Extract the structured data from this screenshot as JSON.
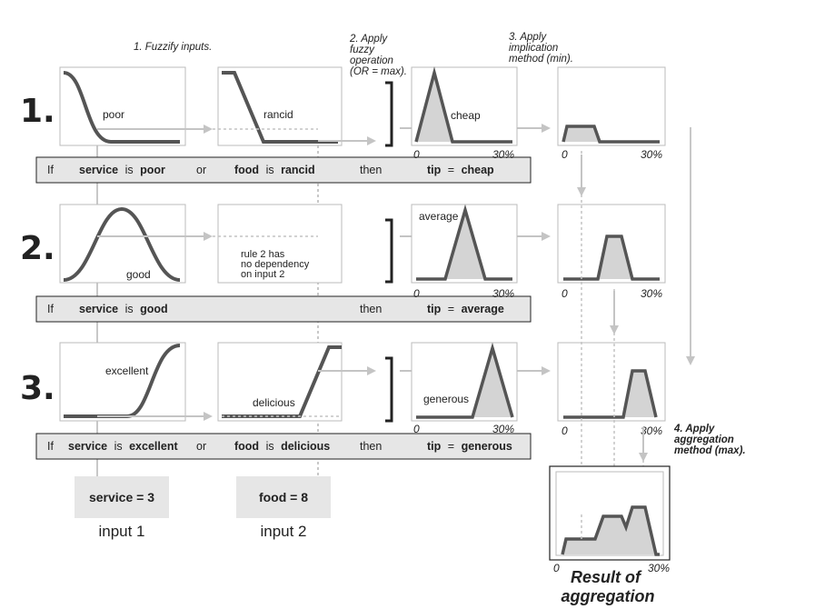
{
  "steps": {
    "s1": "1. Fuzzify inputs.",
    "s2": [
      "2. Apply",
      "fuzzy",
      "operation",
      "(OR = max)."
    ],
    "s3": [
      "3. Apply",
      "implication",
      "method (min)."
    ],
    "s4": [
      "4. Apply",
      "aggregation",
      "method (max)."
    ]
  },
  "rule_numbers": [
    "1.",
    "2.",
    "3."
  ],
  "mf_labels": {
    "poor": "poor",
    "rancid": "rancid",
    "cheap": "cheap",
    "good": "good",
    "average": "average",
    "excellent": "excellent",
    "delicious": "delicious",
    "generous": "generous"
  },
  "rule2_note": [
    "rule 2 has",
    "no dependency",
    "on input 2"
  ],
  "axis": {
    "zero": "0",
    "max": "30%"
  },
  "rules": [
    {
      "if": "If",
      "in1_var": "service",
      "is1": "is",
      "in1_val": "poor",
      "op": "or",
      "in2_var": "food",
      "is2": "is",
      "in2_val": "rancid",
      "then": "then",
      "out_var": "tip",
      "eq": "=",
      "out_val": "cheap"
    },
    {
      "if": "If",
      "in1_var": "service",
      "is1": "is",
      "in1_val": "good",
      "then": "then",
      "out_var": "tip",
      "eq": "=",
      "out_val": "average"
    },
    {
      "if": "If",
      "in1_var": "service",
      "is1": "is",
      "in1_val": "excellent",
      "op": "or",
      "in2_var": "food",
      "is2": "is",
      "in2_val": "delicious",
      "then": "then",
      "out_var": "tip",
      "eq": "=",
      "out_val": "generous"
    }
  ],
  "inputs": [
    {
      "value_text": "service = 3",
      "label": "input 1"
    },
    {
      "value_text": "food = 8",
      "label": "input 2"
    }
  ],
  "result": [
    "Result of",
    "aggregation"
  ]
}
